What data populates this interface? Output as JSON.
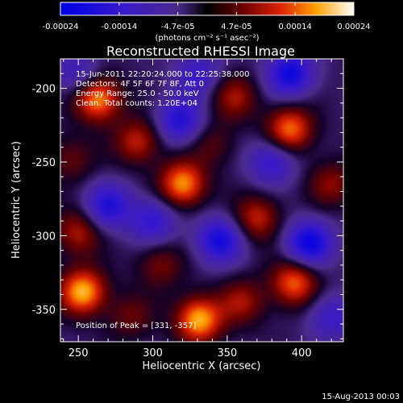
{
  "chart_data": {
    "type": "heatmap",
    "title": "Reconstructed RHESSI Image",
    "xlabel": "Heliocentric X (arcsec)",
    "ylabel": "Heliocentric Y (arcsec)",
    "xlim": [
      238,
      428
    ],
    "ylim": [
      -372,
      -180
    ],
    "x_ticks": [
      250,
      300,
      350,
      400
    ],
    "y_ticks": [
      -200,
      -250,
      -300,
      -350
    ],
    "colorbar": {
      "ticks": [
        "-0.00024",
        "-0.00014",
        "-4.7e-05",
        "4.7e-05",
        "0.00014",
        "0.00024"
      ],
      "unit": "(photons cm⁻² s⁻¹ asec⁻²)",
      "range": [
        -0.00024,
        0.00024
      ]
    },
    "annotations": [
      "15-Jun-2011 22:20:24.000 to 22:25:38.000",
      "Detectors: 4F 5F 6F 7F 8F, Att 0",
      "Energy Range: 25.0 - 50.0 keV",
      "Clean. Total counts: 1.20E+04"
    ],
    "peak_label": "Position of Peak = [331, -357]",
    "footer_date": "15-Aug-2013 00:03",
    "sources": [
      {
        "x": 253,
        "y": -338,
        "v": 1.0
      },
      {
        "x": 263,
        "y": -207,
        "v": 0.95
      },
      {
        "x": 331,
        "y": -357,
        "v": 1.0
      },
      {
        "x": 320,
        "y": -265,
        "v": 0.92
      },
      {
        "x": 392,
        "y": -228,
        "v": 0.85
      },
      {
        "x": 395,
        "y": -332,
        "v": 0.8
      },
      {
        "x": 370,
        "y": -288,
        "v": 0.6
      },
      {
        "x": 290,
        "y": -236,
        "v": 0.6
      },
      {
        "x": 355,
        "y": -206,
        "v": 0.5
      },
      {
        "x": 250,
        "y": -298,
        "v": 0.55
      },
      {
        "x": 305,
        "y": -320,
        "v": 0.4
      },
      {
        "x": 285,
        "y": -355,
        "v": 0.35
      },
      {
        "x": 360,
        "y": -345,
        "v": 0.5
      },
      {
        "x": 420,
        "y": -265,
        "v": 0.45
      },
      {
        "x": 245,
        "y": -248,
        "v": 0.35
      },
      {
        "x": 340,
        "y": -238,
        "v": 0.3
      },
      {
        "x": 405,
        "y": -305,
        "v": -0.9
      },
      {
        "x": 345,
        "y": -303,
        "v": -0.8
      },
      {
        "x": 318,
        "y": -222,
        "v": -0.7
      },
      {
        "x": 392,
        "y": -190,
        "v": -0.85
      },
      {
        "x": 270,
        "y": -280,
        "v": -0.7
      },
      {
        "x": 380,
        "y": -250,
        "v": -0.6
      },
      {
        "x": 330,
        "y": -190,
        "v": -0.5
      },
      {
        "x": 300,
        "y": -290,
        "v": -0.6
      },
      {
        "x": 420,
        "y": -355,
        "v": -0.5
      },
      {
        "x": 250,
        "y": -190,
        "v": -0.45
      }
    ]
  }
}
